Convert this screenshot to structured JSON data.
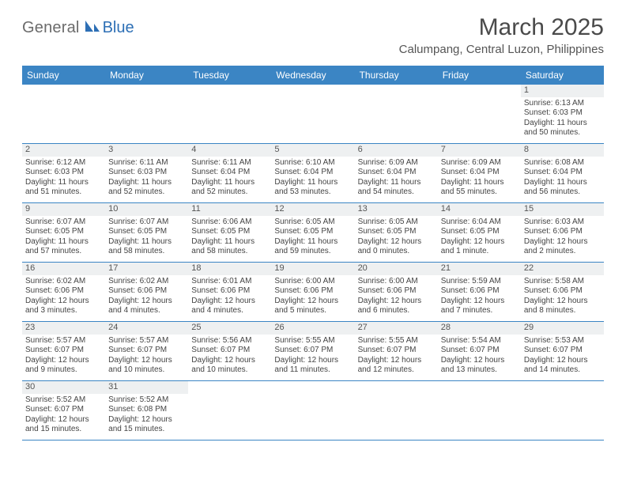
{
  "logo": {
    "gray": "General",
    "blue": "Blue"
  },
  "title": "March 2025",
  "subtitle": "Calumpang, Central Luzon, Philippines",
  "days_of_week": [
    "Sunday",
    "Monday",
    "Tuesday",
    "Wednesday",
    "Thursday",
    "Friday",
    "Saturday"
  ],
  "colors": {
    "header_bar": "#3b85c4",
    "header_text": "#ffffff",
    "cell_head_bg": "#eef0f1",
    "border": "#3b85c4",
    "logo_gray": "#6b6b6b",
    "logo_blue": "#2d6fb5",
    "title_color": "#4a4a4a",
    "body_text": "#444444"
  },
  "weeks": [
    [
      null,
      null,
      null,
      null,
      null,
      null,
      {
        "n": "1",
        "sunrise": "Sunrise: 6:13 AM",
        "sunset": "Sunset: 6:03 PM",
        "daylight": "Daylight: 11 hours and 50 minutes."
      }
    ],
    [
      {
        "n": "2",
        "sunrise": "Sunrise: 6:12 AM",
        "sunset": "Sunset: 6:03 PM",
        "daylight": "Daylight: 11 hours and 51 minutes."
      },
      {
        "n": "3",
        "sunrise": "Sunrise: 6:11 AM",
        "sunset": "Sunset: 6:03 PM",
        "daylight": "Daylight: 11 hours and 52 minutes."
      },
      {
        "n": "4",
        "sunrise": "Sunrise: 6:11 AM",
        "sunset": "Sunset: 6:04 PM",
        "daylight": "Daylight: 11 hours and 52 minutes."
      },
      {
        "n": "5",
        "sunrise": "Sunrise: 6:10 AM",
        "sunset": "Sunset: 6:04 PM",
        "daylight": "Daylight: 11 hours and 53 minutes."
      },
      {
        "n": "6",
        "sunrise": "Sunrise: 6:09 AM",
        "sunset": "Sunset: 6:04 PM",
        "daylight": "Daylight: 11 hours and 54 minutes."
      },
      {
        "n": "7",
        "sunrise": "Sunrise: 6:09 AM",
        "sunset": "Sunset: 6:04 PM",
        "daylight": "Daylight: 11 hours and 55 minutes."
      },
      {
        "n": "8",
        "sunrise": "Sunrise: 6:08 AM",
        "sunset": "Sunset: 6:04 PM",
        "daylight": "Daylight: 11 hours and 56 minutes."
      }
    ],
    [
      {
        "n": "9",
        "sunrise": "Sunrise: 6:07 AM",
        "sunset": "Sunset: 6:05 PM",
        "daylight": "Daylight: 11 hours and 57 minutes."
      },
      {
        "n": "10",
        "sunrise": "Sunrise: 6:07 AM",
        "sunset": "Sunset: 6:05 PM",
        "daylight": "Daylight: 11 hours and 58 minutes."
      },
      {
        "n": "11",
        "sunrise": "Sunrise: 6:06 AM",
        "sunset": "Sunset: 6:05 PM",
        "daylight": "Daylight: 11 hours and 58 minutes."
      },
      {
        "n": "12",
        "sunrise": "Sunrise: 6:05 AM",
        "sunset": "Sunset: 6:05 PM",
        "daylight": "Daylight: 11 hours and 59 minutes."
      },
      {
        "n": "13",
        "sunrise": "Sunrise: 6:05 AM",
        "sunset": "Sunset: 6:05 PM",
        "daylight": "Daylight: 12 hours and 0 minutes."
      },
      {
        "n": "14",
        "sunrise": "Sunrise: 6:04 AM",
        "sunset": "Sunset: 6:05 PM",
        "daylight": "Daylight: 12 hours and 1 minute."
      },
      {
        "n": "15",
        "sunrise": "Sunrise: 6:03 AM",
        "sunset": "Sunset: 6:06 PM",
        "daylight": "Daylight: 12 hours and 2 minutes."
      }
    ],
    [
      {
        "n": "16",
        "sunrise": "Sunrise: 6:02 AM",
        "sunset": "Sunset: 6:06 PM",
        "daylight": "Daylight: 12 hours and 3 minutes."
      },
      {
        "n": "17",
        "sunrise": "Sunrise: 6:02 AM",
        "sunset": "Sunset: 6:06 PM",
        "daylight": "Daylight: 12 hours and 4 minutes."
      },
      {
        "n": "18",
        "sunrise": "Sunrise: 6:01 AM",
        "sunset": "Sunset: 6:06 PM",
        "daylight": "Daylight: 12 hours and 4 minutes."
      },
      {
        "n": "19",
        "sunrise": "Sunrise: 6:00 AM",
        "sunset": "Sunset: 6:06 PM",
        "daylight": "Daylight: 12 hours and 5 minutes."
      },
      {
        "n": "20",
        "sunrise": "Sunrise: 6:00 AM",
        "sunset": "Sunset: 6:06 PM",
        "daylight": "Daylight: 12 hours and 6 minutes."
      },
      {
        "n": "21",
        "sunrise": "Sunrise: 5:59 AM",
        "sunset": "Sunset: 6:06 PM",
        "daylight": "Daylight: 12 hours and 7 minutes."
      },
      {
        "n": "22",
        "sunrise": "Sunrise: 5:58 AM",
        "sunset": "Sunset: 6:06 PM",
        "daylight": "Daylight: 12 hours and 8 minutes."
      }
    ],
    [
      {
        "n": "23",
        "sunrise": "Sunrise: 5:57 AM",
        "sunset": "Sunset: 6:07 PM",
        "daylight": "Daylight: 12 hours and 9 minutes."
      },
      {
        "n": "24",
        "sunrise": "Sunrise: 5:57 AM",
        "sunset": "Sunset: 6:07 PM",
        "daylight": "Daylight: 12 hours and 10 minutes."
      },
      {
        "n": "25",
        "sunrise": "Sunrise: 5:56 AM",
        "sunset": "Sunset: 6:07 PM",
        "daylight": "Daylight: 12 hours and 10 minutes."
      },
      {
        "n": "26",
        "sunrise": "Sunrise: 5:55 AM",
        "sunset": "Sunset: 6:07 PM",
        "daylight": "Daylight: 12 hours and 11 minutes."
      },
      {
        "n": "27",
        "sunrise": "Sunrise: 5:55 AM",
        "sunset": "Sunset: 6:07 PM",
        "daylight": "Daylight: 12 hours and 12 minutes."
      },
      {
        "n": "28",
        "sunrise": "Sunrise: 5:54 AM",
        "sunset": "Sunset: 6:07 PM",
        "daylight": "Daylight: 12 hours and 13 minutes."
      },
      {
        "n": "29",
        "sunrise": "Sunrise: 5:53 AM",
        "sunset": "Sunset: 6:07 PM",
        "daylight": "Daylight: 12 hours and 14 minutes."
      }
    ],
    [
      {
        "n": "30",
        "sunrise": "Sunrise: 5:52 AM",
        "sunset": "Sunset: 6:07 PM",
        "daylight": "Daylight: 12 hours and 15 minutes."
      },
      {
        "n": "31",
        "sunrise": "Sunrise: 5:52 AM",
        "sunset": "Sunset: 6:08 PM",
        "daylight": "Daylight: 12 hours and 15 minutes."
      },
      null,
      null,
      null,
      null,
      null
    ]
  ]
}
